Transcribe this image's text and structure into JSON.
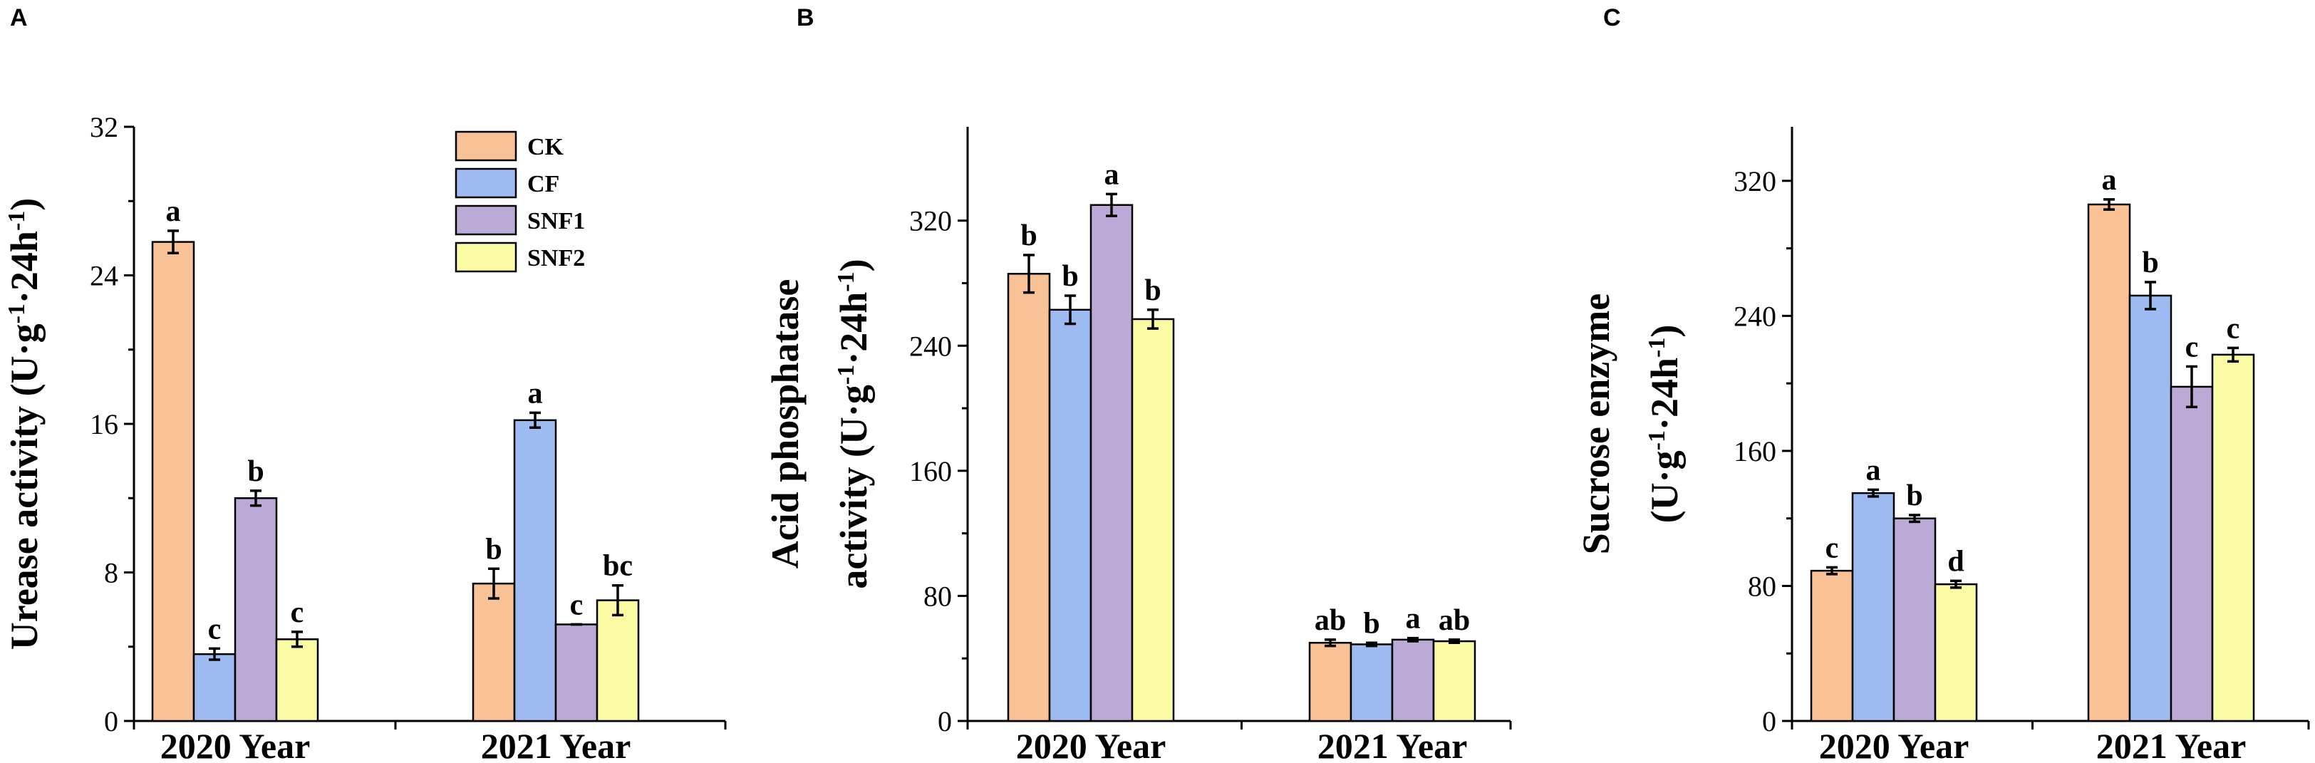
{
  "colors": {
    "CK": "#f9c196",
    "CF": "#9dbbf0",
    "SNF1": "#bcaad6",
    "SNF2": "#fbfba3"
  },
  "chart_data": [
    {
      "type": "bar",
      "panel": "A",
      "ylabel_parts": [
        "Urease activity (U·g",
        "-1",
        "·24h",
        "-1",
        ")"
      ],
      "ylim": [
        0,
        32
      ],
      "yticks": [
        0,
        8,
        16,
        24,
        32
      ],
      "categories": [
        "2020 Year",
        "2021 Year"
      ],
      "legend": [
        "CK",
        "CF",
        "SNF1",
        "SNF2"
      ],
      "legend_position": "top-right",
      "series": [
        {
          "name": "CK",
          "values": [
            25.8,
            7.4
          ],
          "errors": [
            0.6,
            0.8
          ],
          "labels": [
            "a",
            "b"
          ]
        },
        {
          "name": "CF",
          "values": [
            3.6,
            16.2
          ],
          "errors": [
            0.3,
            0.4
          ],
          "labels": [
            "c",
            "a"
          ]
        },
        {
          "name": "SNF1",
          "values": [
            12.0,
            5.2
          ],
          "errors": [
            0.4,
            0.0
          ],
          "labels": [
            "b",
            "c"
          ]
        },
        {
          "name": "SNF2",
          "values": [
            4.4,
            6.5
          ],
          "errors": [
            0.4,
            0.8
          ],
          "labels": [
            "c",
            "bc"
          ]
        }
      ]
    },
    {
      "type": "bar",
      "panel": "B",
      "ylabel_parts": [
        "Acid phosphatase",
        "activity (U·g",
        "-1",
        "·24h",
        "-1",
        ")"
      ],
      "ylim": [
        0,
        380
      ],
      "yticks": [
        0,
        80,
        160,
        240,
        320
      ],
      "categories": [
        "2020 Year",
        "2021 Year"
      ],
      "series": [
        {
          "name": "CK",
          "values": [
            286,
            50
          ],
          "errors": [
            12,
            2
          ],
          "labels": [
            "b",
            "ab"
          ]
        },
        {
          "name": "CF",
          "values": [
            263,
            49
          ],
          "errors": [
            9,
            1
          ],
          "labels": [
            "b",
            "b"
          ]
        },
        {
          "name": "SNF1",
          "values": [
            330,
            52
          ],
          "errors": [
            7,
            1
          ],
          "labels": [
            "a",
            "a"
          ]
        },
        {
          "name": "SNF2",
          "values": [
            257,
            51
          ],
          "errors": [
            6,
            1
          ],
          "labels": [
            "b",
            "ab"
          ]
        }
      ]
    },
    {
      "type": "bar",
      "panel": "C",
      "ylabel_parts": [
        "Sucrose enzyme",
        "(U·g",
        "-1",
        "·24h",
        "-1",
        ")"
      ],
      "ylim": [
        0,
        352
      ],
      "yticks": [
        0,
        80,
        160,
        240,
        320
      ],
      "categories": [
        "2020 Year",
        "2021 Year"
      ],
      "series": [
        {
          "name": "CK",
          "values": [
            89,
            306
          ],
          "errors": [
            2,
            3
          ],
          "labels": [
            "c",
            "a"
          ]
        },
        {
          "name": "CF",
          "values": [
            135,
            252
          ],
          "errors": [
            2,
            8
          ],
          "labels": [
            "a",
            "b"
          ]
        },
        {
          "name": "SNF1",
          "values": [
            120,
            198
          ],
          "errors": [
            2,
            12
          ],
          "labels": [
            "b",
            "c"
          ]
        },
        {
          "name": "SNF2",
          "values": [
            81,
            217
          ],
          "errors": [
            2,
            4
          ],
          "labels": [
            "d",
            "c"
          ]
        }
      ]
    }
  ]
}
